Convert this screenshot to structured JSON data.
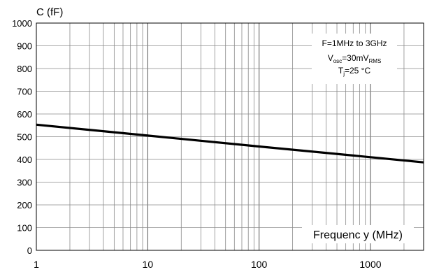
{
  "chart_data": {
    "type": "line",
    "ylabel": "C (fF)",
    "xlabel": "Frequenc y (MHz)",
    "x_scale": "log",
    "xlim": [
      1,
      3000
    ],
    "ylim": [
      0,
      1000
    ],
    "grid": true,
    "x_ticks": [
      1,
      10,
      100,
      1000
    ],
    "x_tick_labels": [
      "1",
      "10",
      "100",
      "1000"
    ],
    "y_ticks": [
      0,
      100,
      200,
      300,
      400,
      500,
      600,
      700,
      800,
      900,
      1000
    ],
    "y_tick_labels": [
      "0",
      "100",
      "200",
      "300",
      "400",
      "500",
      "600",
      "700",
      "800",
      "900",
      "1000"
    ],
    "series": [
      {
        "color": "#000000",
        "x": [
          1,
          10,
          100,
          1000,
          3000
        ],
        "y": [
          553,
          505,
          457,
          410,
          387
        ]
      }
    ],
    "annotation": {
      "line1": "F=1MHz to 3GHz",
      "line2_main": "V",
      "line2_sub": "osc",
      "line2_mid": "=30mV",
      "line2_sub2": "RMS",
      "line3_main": "T",
      "line3_sub": "j",
      "line3_rest": "=25 °C"
    }
  }
}
